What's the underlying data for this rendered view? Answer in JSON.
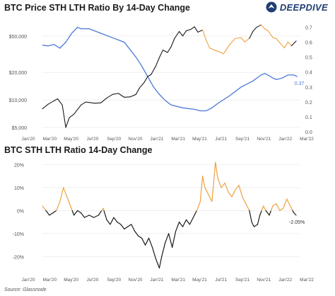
{
  "header": {
    "brand": "DEEPDIVE",
    "brand_icon": "eagle-logo-icon"
  },
  "footer": {
    "source": "Source: Glassnode"
  },
  "colors": {
    "price_below": "#1a1a1a",
    "price_above": "#f0a040",
    "ratio": "#4a78d8",
    "grid": "#e6e6e6",
    "label": "#555555"
  },
  "chart_data": [
    {
      "type": "line",
      "title": "BTC Price STH LTH Ratio By 14-Day Change",
      "x_labels": [
        "Jan'20",
        "Mar'20",
        "May'20",
        "Jul'20",
        "Sep'20",
        "Nov'20",
        "Jan'21",
        "Mar'21",
        "May'21",
        "Jul'21",
        "Sep'21",
        "Nov'21",
        "Jan'22",
        "Mar'22"
      ],
      "y_left": {
        "scale": "log",
        "range": [
          4500,
          75000
        ],
        "ticks": [
          5000,
          10000,
          20000,
          50000
        ],
        "tick_labels": [
          "$5,000",
          "$10,000",
          "$20,000",
          "$50,000"
        ]
      },
      "y_right": {
        "range": [
          0,
          0.75
        ],
        "ticks": [
          0,
          0.1,
          0.2,
          0.3,
          0.4,
          0.5,
          0.6,
          0.7
        ],
        "tick_labels": [
          "0.0",
          "0.1",
          "0.2",
          "0.3",
          "0.4",
          "0.5",
          "0.6",
          "0.7"
        ]
      },
      "annotation": "0.37",
      "series": [
        {
          "axis": "left",
          "points": [
            [
              2020.0,
              8000
            ],
            [
              2020.05,
              9000
            ],
            [
              2020.1,
              9800
            ],
            [
              2020.13,
              10300
            ],
            [
              2020.17,
              8800
            ],
            [
              2020.2,
              5000
            ],
            [
              2020.23,
              6400
            ],
            [
              2020.27,
              7000
            ],
            [
              2020.33,
              8800
            ],
            [
              2020.37,
              9500
            ],
            [
              2020.45,
              9200
            ],
            [
              2020.5,
              9300
            ],
            [
              2020.55,
              10500
            ],
            [
              2020.6,
              11500
            ],
            [
              2020.65,
              11800
            ],
            [
              2020.7,
              10700
            ],
            [
              2020.75,
              10800
            ],
            [
              2020.8,
              11500
            ],
            [
              2020.83,
              13500
            ],
            [
              2020.87,
              15500
            ],
            [
              2020.9,
              18000
            ],
            [
              2020.93,
              19000
            ],
            [
              2020.97,
              23500
            ],
            [
              2021.0,
              29000
            ],
            [
              2021.03,
              35000
            ],
            [
              2021.07,
              33000
            ],
            [
              2021.1,
              38000
            ],
            [
              2021.13,
              47000
            ],
            [
              2021.17,
              56000
            ],
            [
              2021.2,
              50000
            ],
            [
              2021.23,
              57000
            ],
            [
              2021.27,
              59000
            ],
            [
              2021.3,
              63000
            ],
            [
              2021.33,
              55000
            ],
            [
              2021.37,
              58000
            ],
            [
              2021.4,
              45000
            ],
            [
              2021.43,
              37000
            ],
            [
              2021.47,
              35000
            ],
            [
              2021.5,
              34000
            ],
            [
              2021.55,
              32000
            ],
            [
              2021.6,
              40000
            ],
            [
              2021.65,
              47000
            ],
            [
              2021.7,
              48000
            ],
            [
              2021.73,
              43000
            ],
            [
              2021.77,
              47000
            ],
            [
              2021.8,
              56000
            ],
            [
              2021.83,
              62000
            ],
            [
              2021.87,
              66000
            ],
            [
              2021.9,
              60000
            ],
            [
              2021.93,
              57000
            ],
            [
              2021.97,
              48000
            ],
            [
              2022.0,
              47000
            ],
            [
              2022.03,
              42000
            ],
            [
              2022.07,
              37000
            ],
            [
              2022.1,
              43000
            ],
            [
              2022.13,
              39000
            ],
            [
              2022.17,
              44000
            ]
          ]
        },
        {
          "axis": "right",
          "points": [
            [
              2020.0,
              0.58
            ],
            [
              2020.05,
              0.575
            ],
            [
              2020.1,
              0.585
            ],
            [
              2020.15,
              0.56
            ],
            [
              2020.2,
              0.6
            ],
            [
              2020.25,
              0.66
            ],
            [
              2020.3,
              0.7
            ],
            [
              2020.33,
              0.69
            ],
            [
              2020.4,
              0.69
            ],
            [
              2020.5,
              0.66
            ],
            [
              2020.6,
              0.63
            ],
            [
              2020.7,
              0.6
            ],
            [
              2020.75,
              0.55
            ],
            [
              2020.8,
              0.5
            ],
            [
              2020.85,
              0.44
            ],
            [
              2020.9,
              0.37
            ],
            [
              2020.95,
              0.3
            ],
            [
              2021.0,
              0.25
            ],
            [
              2021.05,
              0.21
            ],
            [
              2021.1,
              0.18
            ],
            [
              2021.2,
              0.16
            ],
            [
              2021.3,
              0.15
            ],
            [
              2021.35,
              0.14
            ],
            [
              2021.4,
              0.14
            ],
            [
              2021.45,
              0.16
            ],
            [
              2021.5,
              0.19
            ],
            [
              2021.6,
              0.24
            ],
            [
              2021.7,
              0.3
            ],
            [
              2021.8,
              0.34
            ],
            [
              2021.87,
              0.38
            ],
            [
              2021.9,
              0.39
            ],
            [
              2021.93,
              0.38
            ],
            [
              2021.97,
              0.36
            ],
            [
              2022.0,
              0.35
            ],
            [
              2022.05,
              0.36
            ],
            [
              2022.1,
              0.38
            ],
            [
              2022.15,
              0.38
            ],
            [
              2022.18,
              0.37
            ]
          ]
        }
      ]
    },
    {
      "type": "line",
      "title": "BTC STH LTH Ratio 14-Day Change",
      "x_labels": [
        "Jan'20",
        "Mar'20",
        "May'20",
        "Jul'20",
        "Sep'20",
        "Nov'20",
        "Jan'21",
        "Mar'21",
        "May'21",
        "Jul'21",
        "Sep'21",
        "Nov'21",
        "Jan'22",
        "Mar'22"
      ],
      "y_range": [
        -0.27,
        0.22
      ],
      "y_ticks": [
        -0.2,
        -0.1,
        0,
        0.1,
        0.2
      ],
      "y_tick_labels": [
        "-20%",
        "-10%",
        "0%",
        "10%",
        "20%"
      ],
      "annotation": "-2.05%",
      "series": [
        {
          "name": "",
          "points": [
            [
              2020.0,
              0.02
            ],
            [
              2020.03,
              0.0
            ],
            [
              2020.06,
              -0.02
            ],
            [
              2020.09,
              -0.01
            ],
            [
              2020.12,
              0.0
            ],
            [
              2020.15,
              0.04
            ],
            [
              2020.18,
              0.1
            ],
            [
              2020.21,
              0.06
            ],
            [
              2020.24,
              0.02
            ],
            [
              2020.27,
              -0.02
            ],
            [
              2020.3,
              0.0
            ],
            [
              2020.33,
              -0.01
            ],
            [
              2020.36,
              -0.03
            ],
            [
              2020.4,
              -0.02
            ],
            [
              2020.44,
              -0.03
            ],
            [
              2020.48,
              -0.02
            ],
            [
              2020.52,
              0.01
            ],
            [
              2020.55,
              -0.04
            ],
            [
              2020.58,
              -0.06
            ],
            [
              2020.61,
              -0.03
            ],
            [
              2020.64,
              -0.05
            ],
            [
              2020.67,
              -0.06
            ],
            [
              2020.7,
              -0.08
            ],
            [
              2020.73,
              -0.07
            ],
            [
              2020.76,
              -0.06
            ],
            [
              2020.79,
              -0.09
            ],
            [
              2020.82,
              -0.11
            ],
            [
              2020.85,
              -0.12
            ],
            [
              2020.88,
              -0.15
            ],
            [
              2020.91,
              -0.12
            ],
            [
              2020.94,
              -0.16
            ],
            [
              2020.97,
              -0.21
            ],
            [
              2021.0,
              -0.25
            ],
            [
              2021.02,
              -0.2
            ],
            [
              2021.05,
              -0.14
            ],
            [
              2021.08,
              -0.1
            ],
            [
              2021.11,
              -0.16
            ],
            [
              2021.14,
              -0.09
            ],
            [
              2021.17,
              -0.05
            ],
            [
              2021.2,
              -0.07
            ],
            [
              2021.23,
              -0.04
            ],
            [
              2021.26,
              -0.06
            ],
            [
              2021.29,
              -0.03
            ],
            [
              2021.32,
              0.0
            ],
            [
              2021.35,
              0.04
            ],
            [
              2021.37,
              0.15
            ],
            [
              2021.39,
              0.1
            ],
            [
              2021.42,
              0.07
            ],
            [
              2021.45,
              0.04
            ],
            [
              2021.48,
              0.21
            ],
            [
              2021.5,
              0.14
            ],
            [
              2021.53,
              0.1
            ],
            [
              2021.56,
              0.12
            ],
            [
              2021.59,
              0.08
            ],
            [
              2021.62,
              0.06
            ],
            [
              2021.65,
              0.09
            ],
            [
              2021.68,
              0.11
            ],
            [
              2021.71,
              0.06
            ],
            [
              2021.74,
              0.03
            ],
            [
              2021.77,
              0.0
            ],
            [
              2021.79,
              -0.05
            ],
            [
              2021.81,
              -0.07
            ],
            [
              2021.84,
              -0.06
            ],
            [
              2021.86,
              -0.02
            ],
            [
              2021.89,
              0.02
            ],
            [
              2021.91,
              0.0
            ],
            [
              2021.94,
              -0.02
            ],
            [
              2021.97,
              0.02
            ],
            [
              2022.0,
              0.03
            ],
            [
              2022.03,
              0.0
            ],
            [
              2022.06,
              0.01
            ],
            [
              2022.09,
              0.05
            ],
            [
              2022.12,
              0.02
            ],
            [
              2022.15,
              -0.01
            ],
            [
              2022.17,
              -0.02
            ]
          ]
        }
      ]
    }
  ]
}
